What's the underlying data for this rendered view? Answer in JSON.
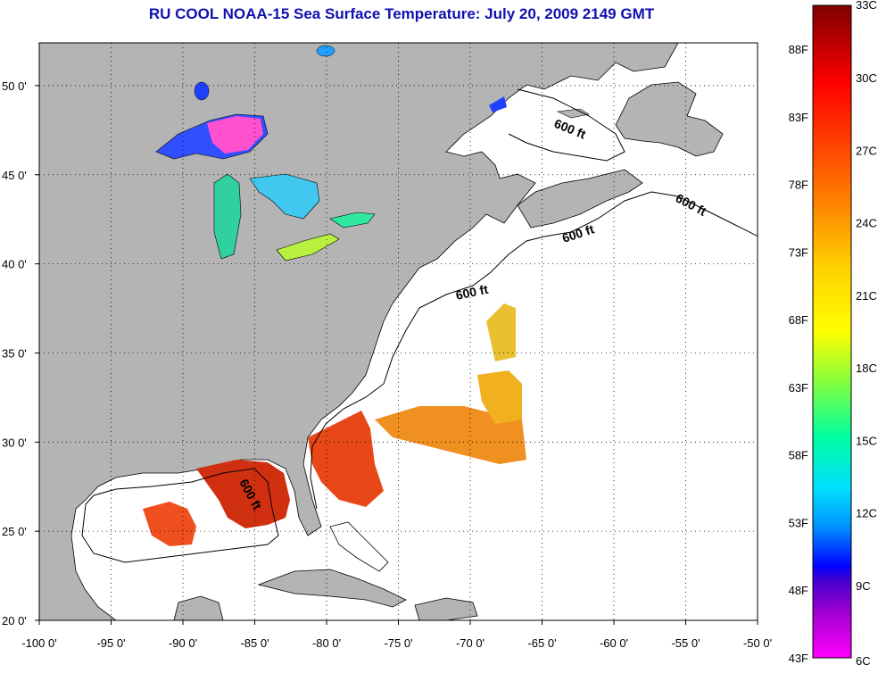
{
  "title": "RU COOL  NOAA-15  Sea Surface Temperature:  July 20, 2009 2149 GMT",
  "lon_ticks": [
    "-100 0'",
    "-95 0'",
    "-90 0'",
    "-85 0'",
    "-80 0'",
    "-75 0'",
    "-70 0'",
    "-65 0'",
    "-60 0'",
    "-55 0'",
    "-50 0'"
  ],
  "lat_ticks": [
    "50 0'",
    "45 0'",
    "40 0'",
    "35 0'",
    "30 0'",
    "25 0'",
    "20 0'"
  ],
  "contour_labels": [
    "600 ft",
    "600 ft",
    "600 ft",
    "600 ft",
    "600 ft"
  ],
  "colorbar": {
    "celsius_labels": [
      "33C",
      "30C",
      "27C",
      "24C",
      "21C",
      "18C",
      "15C",
      "12C",
      "9C",
      "6C"
    ],
    "fahrenheit_labels": [
      "88F",
      "83F",
      "78F",
      "73F",
      "68F",
      "63F",
      "58F",
      "53F",
      "48F",
      "43F"
    ],
    "colors": [
      "#800000",
      "#ff0000",
      "#ff8000",
      "#ffff00",
      "#00ff80",
      "#00ffff",
      "#0080ff",
      "#0000ff",
      "#8000c0",
      "#ff00ff"
    ]
  },
  "colors": {
    "land": "#b4b4b4",
    "ocean": "#ffffff",
    "title": "#1010b0"
  }
}
